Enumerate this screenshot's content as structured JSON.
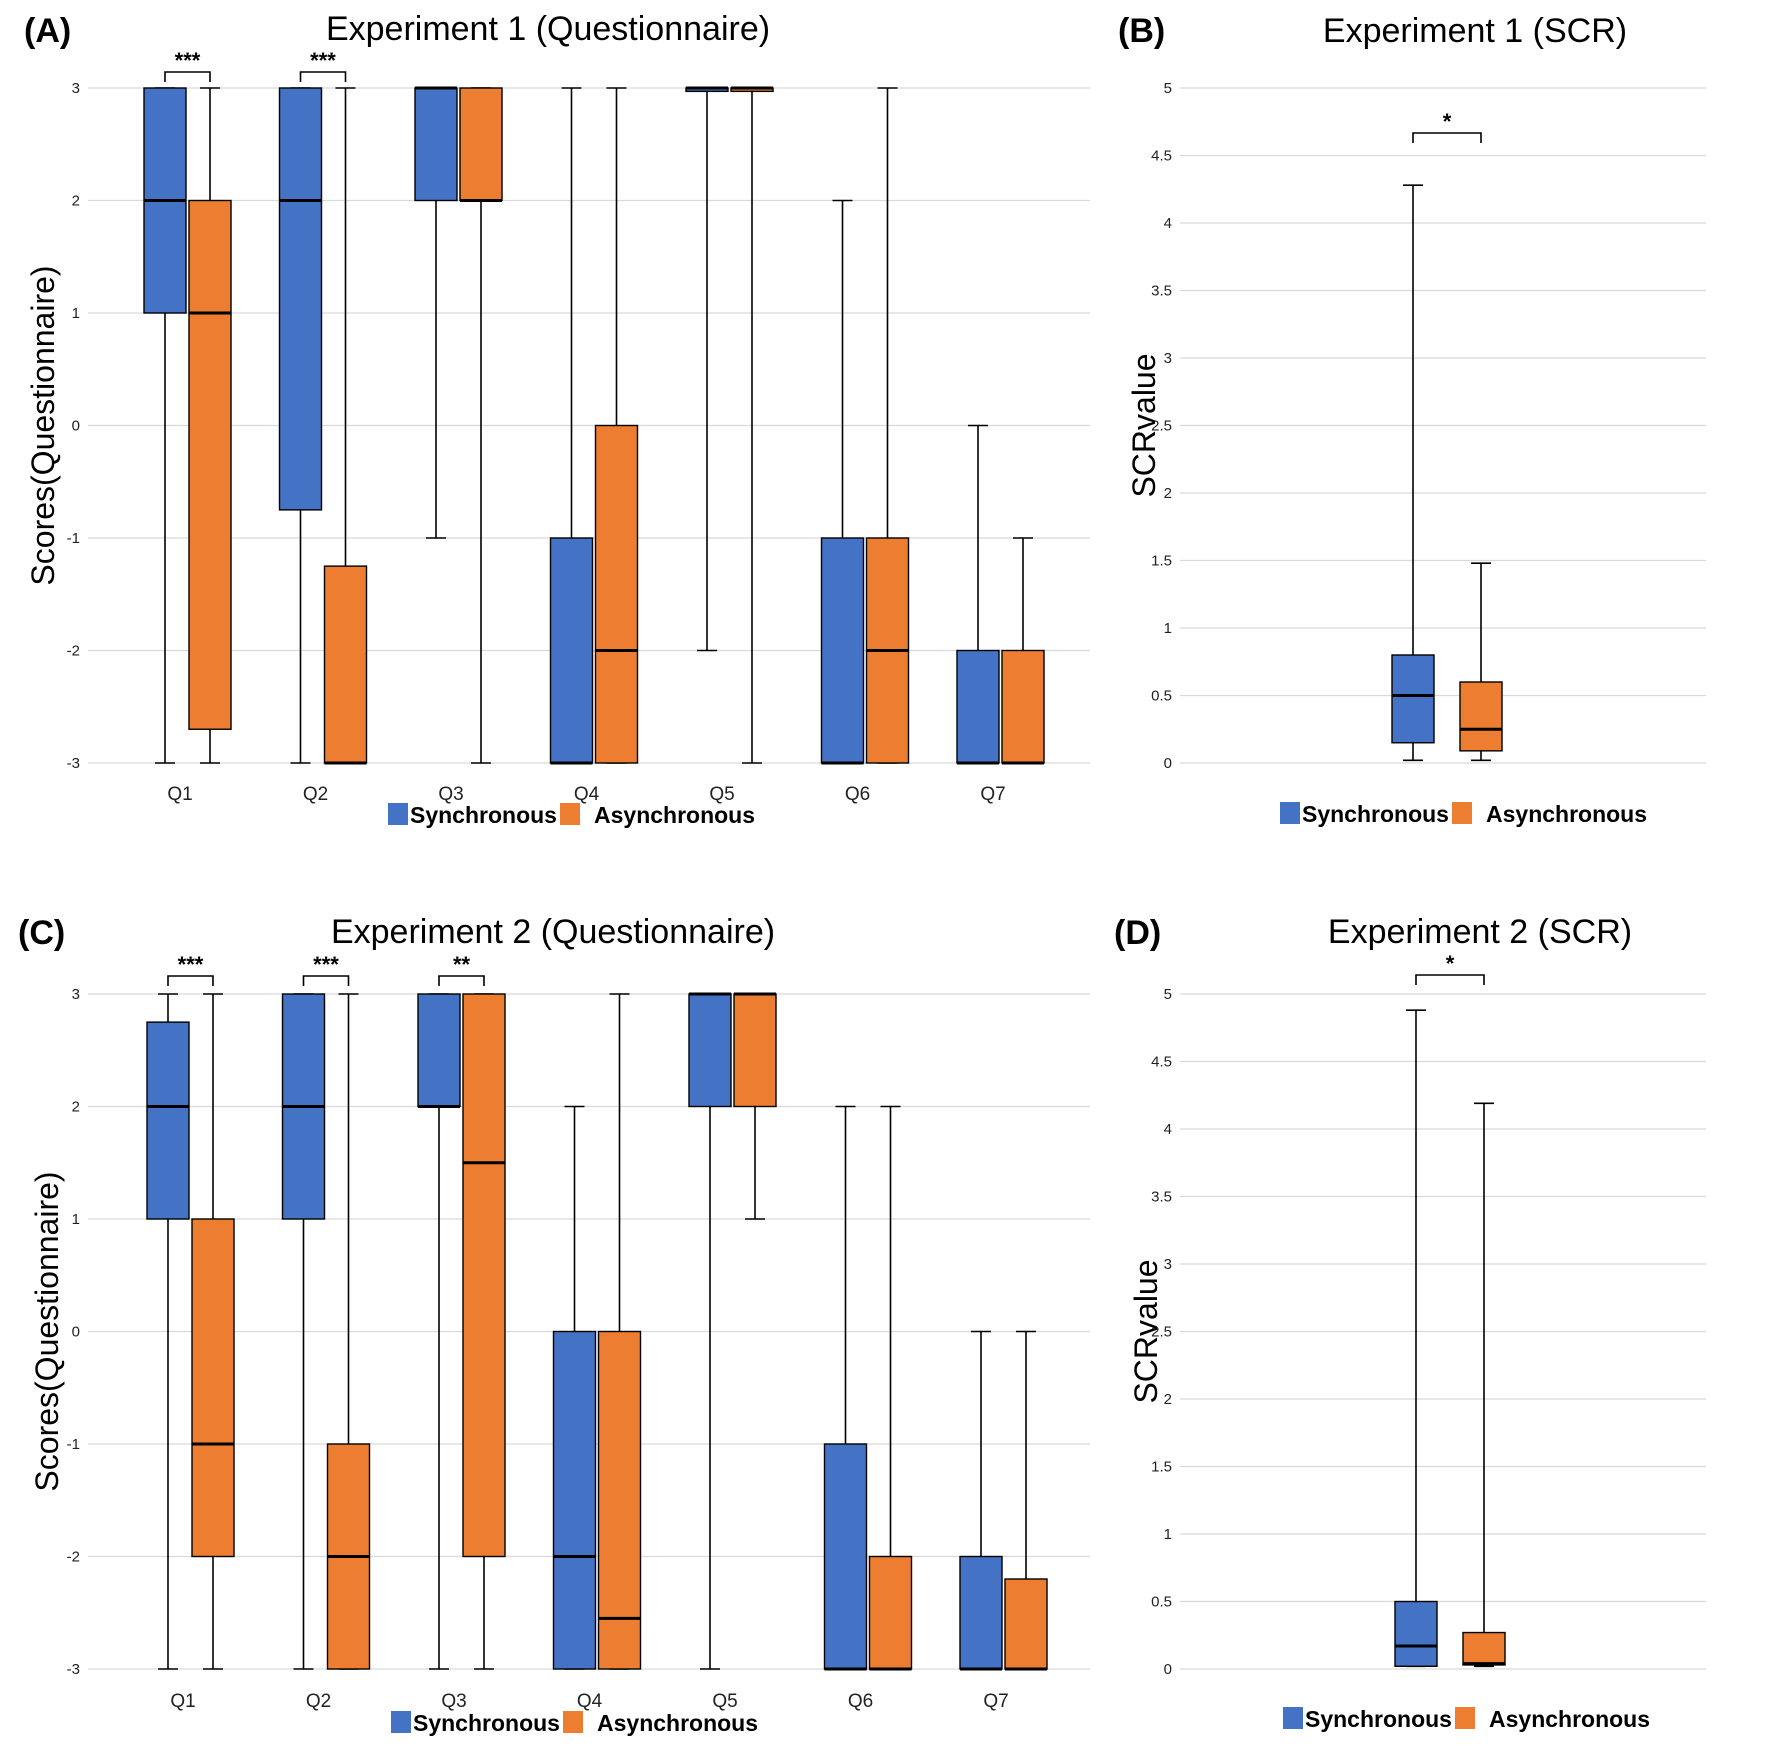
{
  "colors": {
    "sync": "#4472C4",
    "async": "#ED7D31",
    "grid": "#D9D9D9",
    "line": "#000000"
  },
  "chart_data": [
    {
      "id": "A",
      "panel_label": "(A)",
      "type": "boxplot",
      "title": "Experiment 1 (Questionnaire)",
      "ylabel": "Scores(Questionnaire)",
      "ylim": [
        -3,
        3
      ],
      "yticks": [
        "3",
        "2",
        "1",
        "0",
        "-1",
        "-2",
        "-3"
      ],
      "categories": [
        "Q1",
        "Q2",
        "Q3",
        "Q4",
        "Q5",
        "Q6",
        "Q7"
      ],
      "legend": [
        "Synchronous",
        "Asynchronous"
      ],
      "series": [
        {
          "name": "Synchronous",
          "boxes": [
            {
              "min": -3,
              "q1": 1,
              "median": 2,
              "q3": 3,
              "max": 3
            },
            {
              "min": -3,
              "q1": -0.75,
              "median": 2,
              "q3": 3,
              "max": 3
            },
            {
              "min": -1,
              "q1": 2,
              "median": 3,
              "q3": 3,
              "max": 3
            },
            {
              "min": -3,
              "q1": -3,
              "median": -3,
              "q3": -1,
              "max": 3
            },
            {
              "min": -2,
              "q1": 2.97,
              "median": 3,
              "q3": 3,
              "max": 3
            },
            {
              "min": -3,
              "q1": -3,
              "median": -3,
              "q3": -1,
              "max": 2
            },
            {
              "min": -3,
              "q1": -3,
              "median": -3,
              "q3": -2,
              "max": 0
            }
          ]
        },
        {
          "name": "Asynchronous",
          "boxes": [
            {
              "min": -3,
              "q1": -2.7,
              "median": 1,
              "q3": 2,
              "max": 3
            },
            {
              "min": -3,
              "q1": -3,
              "median": -3,
              "q3": -1.25,
              "max": 3
            },
            {
              "min": -3,
              "q1": 2,
              "median": 2,
              "q3": 3,
              "max": 3
            },
            {
              "min": -3,
              "q1": -3,
              "median": -2,
              "q3": 0,
              "max": 3
            },
            {
              "min": -3,
              "q1": 2.97,
              "median": 3,
              "q3": 3,
              "max": 3
            },
            {
              "min": -3,
              "q1": -3,
              "median": -2,
              "q3": -1,
              "max": 3
            },
            {
              "min": -3,
              "q1": -3,
              "median": -3,
              "q3": -2,
              "max": -1
            }
          ]
        }
      ],
      "significance": [
        {
          "category": "Q1",
          "label": "***"
        },
        {
          "category": "Q2",
          "label": "***"
        }
      ]
    },
    {
      "id": "B",
      "panel_label": "(B)",
      "type": "boxplot",
      "title": "Experiment 1 (SCR)",
      "ylabel": "SCRvalue",
      "ylim": [
        0,
        5
      ],
      "yticks": [
        "5",
        "4.5",
        "4",
        "3.5",
        "3",
        "2.5",
        "2",
        "1.5",
        "1",
        "0.5",
        "0"
      ],
      "categories": [
        ""
      ],
      "legend": [
        "Synchronous",
        "Asynchronous"
      ],
      "series": [
        {
          "name": "Synchronous",
          "boxes": [
            {
              "min": 0.02,
              "q1": 0.15,
              "median": 0.5,
              "q3": 0.8,
              "max": 4.28
            }
          ]
        },
        {
          "name": "Asynchronous",
          "boxes": [
            {
              "min": 0.02,
              "q1": 0.09,
              "median": 0.25,
              "q3": 0.6,
              "max": 1.48
            }
          ]
        }
      ],
      "significance": [
        {
          "category": "",
          "label": "*"
        }
      ]
    },
    {
      "id": "C",
      "panel_label": "(C)",
      "type": "boxplot",
      "title": "Experiment 2 (Questionnaire)",
      "ylabel": "Scores(Questionnaire)",
      "ylim": [
        -3,
        3
      ],
      "yticks": [
        "3",
        "2",
        "1",
        "0",
        "-1",
        "-2",
        "-3"
      ],
      "categories": [
        "Q1",
        "Q2",
        "Q3",
        "Q4",
        "Q5",
        "Q6",
        "Q7"
      ],
      "legend": [
        "Synchronous",
        "Asynchronous"
      ],
      "series": [
        {
          "name": "Synchronous",
          "boxes": [
            {
              "min": -3,
              "q1": 1,
              "median": 2,
              "q3": 2.75,
              "max": 3
            },
            {
              "min": -3,
              "q1": 1,
              "median": 2,
              "q3": 3,
              "max": 3
            },
            {
              "min": -3,
              "q1": 2,
              "median": 2,
              "q3": 3,
              "max": 3
            },
            {
              "min": -3,
              "q1": -3,
              "median": -2,
              "q3": 0,
              "max": 2
            },
            {
              "min": -3,
              "q1": 2,
              "median": 3,
              "q3": 3,
              "max": 3
            },
            {
              "min": -3,
              "q1": -3,
              "median": -3,
              "q3": -1,
              "max": 2
            },
            {
              "min": -3,
              "q1": -3,
              "median": -3,
              "q3": -2,
              "max": 0
            }
          ]
        },
        {
          "name": "Asynchronous",
          "boxes": [
            {
              "min": -3,
              "q1": -2,
              "median": -1,
              "q3": 1,
              "max": 3
            },
            {
              "min": -3,
              "q1": -3,
              "median": -2,
              "q3": -1,
              "max": 3
            },
            {
              "min": -3,
              "q1": -2,
              "median": 1.5,
              "q3": 3,
              "max": 3
            },
            {
              "min": -3,
              "q1": -3,
              "median": -2.55,
              "q3": 0,
              "max": 3
            },
            {
              "min": 1,
              "q1": 2,
              "median": 3,
              "q3": 3,
              "max": 3
            },
            {
              "min": -3,
              "q1": -3,
              "median": -3,
              "q3": -2,
              "max": 2
            },
            {
              "min": -3,
              "q1": -3,
              "median": -3,
              "q3": -2.2,
              "max": 0
            }
          ]
        }
      ],
      "significance": [
        {
          "category": "Q1",
          "label": "***"
        },
        {
          "category": "Q2",
          "label": "***"
        },
        {
          "category": "Q3",
          "label": "**"
        }
      ]
    },
    {
      "id": "D",
      "panel_label": "(D)",
      "type": "boxplot",
      "title": "Experiment 2 (SCR)",
      "ylabel": "SCRvalue",
      "ylim": [
        0,
        5
      ],
      "yticks": [
        "5",
        "4.5",
        "4",
        "3.5",
        "3",
        "2.5",
        "2",
        "1.5",
        "1",
        "0.5",
        "0"
      ],
      "categories": [
        ""
      ],
      "legend": [
        "Synchronous",
        "Asynchronous"
      ],
      "series": [
        {
          "name": "Synchronous",
          "boxes": [
            {
              "min": 0.02,
              "q1": 0.02,
              "median": 0.17,
              "q3": 0.5,
              "max": 4.88
            }
          ]
        },
        {
          "name": "Asynchronous",
          "boxes": [
            {
              "min": 0.02,
              "q1": 0.03,
              "median": 0.04,
              "q3": 0.27,
              "max": 4.19
            }
          ]
        }
      ],
      "significance": [
        {
          "category": "",
          "label": "*"
        }
      ]
    }
  ]
}
